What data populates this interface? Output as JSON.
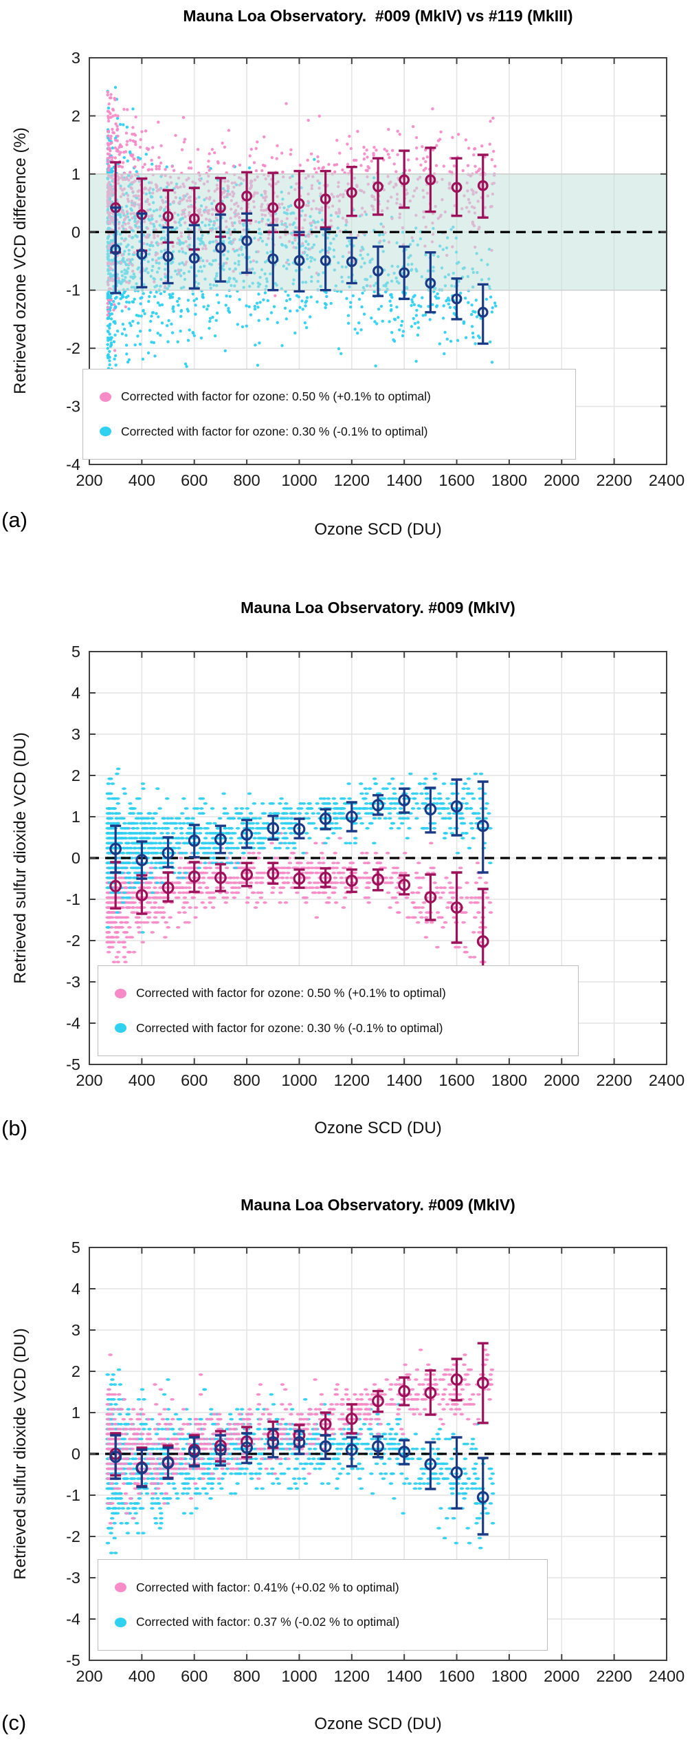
{
  "colors": {
    "pink_scatter": "#f78bc7",
    "cyan_scatter": "#2fd0f0",
    "dark_magenta_errorbar": "#9c1159",
    "dark_blue_errorbar": "#1a3a86",
    "band_fill": "#bfe1d9",
    "grid": "#e3e3e3",
    "axis": "#3f3f3f",
    "zero_line": "#000000",
    "tick_label": "#1a1a1a"
  },
  "chart_data": [
    {
      "type": "scatter",
      "panel_label": "(a)",
      "title": "Mauna Loa Observatory.  #009 (MkIV) vs #119 (MkIII)",
      "xlabel": "Ozone SCD (DU)",
      "ylabel": "Retrieved ozone VCD difference (%)",
      "xlim": [
        200,
        2400
      ],
      "ylim": [
        -4,
        3
      ],
      "xticks": [
        200,
        400,
        600,
        800,
        1000,
        1200,
        1400,
        1600,
        1800,
        2000,
        2200,
        2400
      ],
      "yticks": [
        3,
        2,
        1,
        0,
        -1,
        -2,
        -3,
        -4
      ],
      "grid": true,
      "zero_line_dashed": true,
      "shaded_band": {
        "from": -1,
        "to": 1,
        "color": "#bfe1d9",
        "opacity": 0.5
      },
      "legend_position": "lower-left-inside",
      "legend": [
        {
          "label": "Corrected with factor for ozone: 0.50 % (+0.1% to optimal)",
          "color": "#f78bc7"
        },
        {
          "label": "Corrected with factor for ozone: 0.30 % (-0.1% to optimal)",
          "color": "#2fd0f0"
        }
      ],
      "errorbar_series": [
        {
          "name": "binned-mean-plus-0.1",
          "color": "#9c1159",
          "x": [
            300,
            400,
            500,
            600,
            700,
            800,
            900,
            1000,
            1100,
            1200,
            1300,
            1400,
            1500,
            1600,
            1700
          ],
          "y": [
            0.42,
            0.3,
            0.27,
            0.23,
            0.42,
            0.62,
            0.42,
            0.49,
            0.57,
            0.68,
            0.78,
            0.9,
            0.9,
            0.77,
            0.8
          ],
          "hi": [
            1.2,
            0.92,
            0.72,
            0.76,
            0.93,
            1.03,
            1.02,
            1.05,
            1.05,
            1.12,
            1.27,
            1.4,
            1.45,
            1.27,
            1.33
          ],
          "lo": [
            -0.35,
            -0.32,
            -0.18,
            -0.3,
            -0.08,
            0.2,
            0.0,
            -0.05,
            0.08,
            0.28,
            0.3,
            0.42,
            0.35,
            0.28,
            0.25
          ]
        },
        {
          "name": "binned-mean-minus-0.1",
          "color": "#1a3a86",
          "x": [
            300,
            400,
            500,
            600,
            700,
            800,
            900,
            1000,
            1100,
            1200,
            1300,
            1400,
            1500,
            1600,
            1700
          ],
          "y": [
            -0.3,
            -0.38,
            -0.42,
            -0.45,
            -0.27,
            -0.15,
            -0.46,
            -0.49,
            -0.49,
            -0.51,
            -0.67,
            -0.7,
            -0.88,
            -1.15,
            -1.38
          ],
          "hi": [
            0.42,
            0.32,
            0.08,
            0.12,
            0.3,
            0.32,
            0.12,
            0.0,
            0.05,
            -0.1,
            -0.25,
            -0.25,
            -0.35,
            -0.8,
            -0.9
          ],
          "lo": [
            -1.05,
            -0.95,
            -0.88,
            -0.97,
            -0.85,
            -0.7,
            -1.0,
            -1.02,
            -1.0,
            -0.88,
            -1.1,
            -1.15,
            -1.38,
            -1.5,
            -1.92
          ]
        }
      ],
      "clouds": [
        {
          "name": "scatter-minus-0.1",
          "color": "#2fd0f0",
          "n": 1400,
          "seed": 11,
          "x_exponent": 2.2,
          "y_step": 0,
          "marker": {
            "rx": 2.2,
            "ry": 2.2
          },
          "keypoints": [
            [
              270,
              -0.4,
              1.15
            ],
            [
              400,
              -0.45,
              0.85
            ],
            [
              600,
              -0.5,
              0.75
            ],
            [
              800,
              -0.4,
              0.65
            ],
            [
              1000,
              -0.55,
              0.65
            ],
            [
              1200,
              -0.7,
              0.6
            ],
            [
              1400,
              -0.9,
              0.55
            ],
            [
              1750,
              -1.25,
              0.5
            ]
          ]
        },
        {
          "name": "scatter-plus-0.1",
          "color": "#f78bc7",
          "n": 1100,
          "seed": 22,
          "x_exponent": 1.9,
          "y_step": 0,
          "marker": {
            "rx": 2.2,
            "ry": 2.2
          },
          "keypoints": [
            [
              270,
              0.75,
              0.95
            ],
            [
              400,
              0.55,
              0.62
            ],
            [
              600,
              0.45,
              0.55
            ],
            [
              800,
              0.55,
              0.5
            ],
            [
              1000,
              0.5,
              0.48
            ],
            [
              1200,
              0.68,
              0.5
            ],
            [
              1400,
              0.85,
              0.5
            ],
            [
              1750,
              0.8,
              0.48
            ]
          ]
        }
      ]
    },
    {
      "type": "scatter",
      "panel_label": "(b)",
      "title": "Mauna Loa Observatory. #009 (MkIV)",
      "xlabel": "Ozone SCD (DU)",
      "ylabel": "Retrieved sulfur dioxide VCD (DU)",
      "xlim": [
        200,
        2400
      ],
      "ylim": [
        -5,
        5
      ],
      "xticks": [
        200,
        400,
        600,
        800,
        1000,
        1200,
        1400,
        1600,
        1800,
        2000,
        2200,
        2400
      ],
      "yticks": [
        5,
        4,
        3,
        2,
        1,
        0,
        -1,
        -2,
        -3,
        -4,
        -5
      ],
      "grid": true,
      "zero_line_dashed": true,
      "shaded_band": null,
      "legend_position": "lower-left-inside",
      "legend": [
        {
          "label": "Corrected with factor for ozone: 0.50 % (+0.1% to optimal)",
          "color": "#f78bc7"
        },
        {
          "label": "Corrected with factor for ozone: 0.30 % (-0.1% to optimal)",
          "color": "#2fd0f0"
        }
      ],
      "errorbar_series": [
        {
          "name": "binned-mean-plus-0.1",
          "color": "#9c1159",
          "x": [
            300,
            400,
            500,
            600,
            700,
            800,
            900,
            1000,
            1100,
            1200,
            1300,
            1400,
            1500,
            1600,
            1700
          ],
          "y": [
            -0.68,
            -0.9,
            -0.72,
            -0.45,
            -0.48,
            -0.4,
            -0.38,
            -0.5,
            -0.48,
            -0.55,
            -0.52,
            -0.65,
            -0.95,
            -1.2,
            -2.02
          ],
          "hi": [
            -0.1,
            -0.42,
            -0.35,
            -0.1,
            -0.15,
            -0.12,
            -0.12,
            -0.28,
            -0.25,
            -0.28,
            -0.28,
            -0.42,
            -0.4,
            -0.35,
            -0.75
          ],
          "lo": [
            -1.22,
            -1.35,
            -1.05,
            -0.82,
            -0.8,
            -0.68,
            -0.62,
            -0.72,
            -0.7,
            -0.82,
            -0.78,
            -0.88,
            -1.5,
            -2.05,
            -3.2
          ]
        },
        {
          "name": "binned-mean-minus-0.1",
          "color": "#1a3a86",
          "x": [
            300,
            400,
            500,
            600,
            700,
            800,
            900,
            1000,
            1100,
            1200,
            1300,
            1400,
            1500,
            1600,
            1700
          ],
          "y": [
            0.22,
            -0.05,
            0.12,
            0.42,
            0.45,
            0.57,
            0.72,
            0.7,
            0.95,
            1.0,
            1.28,
            1.4,
            1.18,
            1.25,
            0.78
          ],
          "hi": [
            0.78,
            0.4,
            0.5,
            0.8,
            0.78,
            0.92,
            1.02,
            0.95,
            1.18,
            1.35,
            1.52,
            1.68,
            1.7,
            1.9,
            1.85
          ],
          "lo": [
            -0.35,
            -0.5,
            -0.22,
            0.02,
            0.12,
            0.25,
            0.45,
            0.48,
            0.7,
            0.65,
            1.05,
            1.1,
            0.62,
            0.55,
            -0.35
          ]
        }
      ],
      "clouds": [
        {
          "name": "scatter-plus-0.1",
          "color": "#f78bc7",
          "n": 1150,
          "seed": 33,
          "x_exponent": 2.1,
          "y_step": 0.12,
          "marker": {
            "rx": 3.3,
            "ry": 1.9
          },
          "keypoints": [
            [
              270,
              -1.0,
              0.72
            ],
            [
              450,
              -0.8,
              0.5
            ],
            [
              700,
              -0.45,
              0.35
            ],
            [
              900,
              -0.4,
              0.32
            ],
            [
              1100,
              -0.5,
              0.32
            ],
            [
              1300,
              -0.5,
              0.32
            ],
            [
              1500,
              -0.95,
              0.5
            ],
            [
              1730,
              -1.5,
              0.7
            ]
          ]
        },
        {
          "name": "scatter-minus-0.1",
          "color": "#2fd0f0",
          "n": 1250,
          "seed": 44,
          "x_exponent": 2.0,
          "y_step": 0.12,
          "marker": {
            "rx": 3.3,
            "ry": 1.9
          },
          "keypoints": [
            [
              270,
              0.25,
              0.62
            ],
            [
              450,
              0.3,
              0.5
            ],
            [
              700,
              0.5,
              0.38
            ],
            [
              900,
              0.7,
              0.33
            ],
            [
              1100,
              0.95,
              0.3
            ],
            [
              1300,
              1.3,
              0.28
            ],
            [
              1500,
              1.25,
              0.42
            ],
            [
              1730,
              0.9,
              0.6
            ]
          ]
        }
      ]
    },
    {
      "type": "scatter",
      "panel_label": "(c)",
      "title": "Mauna Loa Observatory. #009 (MkIV)",
      "xlabel": "Ozone SCD (DU)",
      "ylabel": "Retrieved sulfur dioxide VCD (DU)",
      "xlim": [
        200,
        2400
      ],
      "ylim": [
        -5,
        5
      ],
      "xticks": [
        200,
        400,
        600,
        800,
        1000,
        1200,
        1400,
        1600,
        1800,
        2000,
        2200,
        2400
      ],
      "yticks": [
        5,
        4,
        3,
        2,
        1,
        0,
        -1,
        -2,
        -3,
        -4,
        -5
      ],
      "grid": true,
      "zero_line_dashed": true,
      "shaded_band": null,
      "legend_position": "lower-left-inside",
      "legend": [
        {
          "label": "Corrected with factor: 0.41% (+0.02 % to optimal)",
          "color": "#f78bc7"
        },
        {
          "label": "Corrected with factor: 0.37 % (-0.02 % to optimal)",
          "color": "#2fd0f0"
        }
      ],
      "errorbar_series": [
        {
          "name": "binned-mean-plus-0.02",
          "color": "#9c1159",
          "x": [
            300,
            400,
            500,
            600,
            700,
            800,
            900,
            1000,
            1100,
            1200,
            1300,
            1400,
            1500,
            1600,
            1700
          ],
          "y": [
            0.0,
            -0.33,
            -0.2,
            0.1,
            0.2,
            0.3,
            0.45,
            0.45,
            0.72,
            0.85,
            1.28,
            1.52,
            1.48,
            1.8,
            1.72
          ],
          "hi": [
            0.5,
            0.15,
            0.2,
            0.45,
            0.55,
            0.65,
            0.78,
            0.7,
            1.0,
            1.2,
            1.52,
            1.85,
            2.02,
            2.3,
            2.68
          ],
          "lo": [
            -0.52,
            -0.78,
            -0.58,
            -0.28,
            -0.18,
            -0.08,
            0.15,
            0.18,
            0.45,
            0.5,
            1.02,
            1.18,
            0.95,
            1.3,
            0.75
          ]
        },
        {
          "name": "binned-mean-minus-0.02",
          "color": "#1a3a86",
          "x": [
            300,
            400,
            500,
            600,
            700,
            800,
            900,
            1000,
            1100,
            1200,
            1300,
            1400,
            1500,
            1600,
            1700
          ],
          "y": [
            -0.07,
            -0.35,
            -0.22,
            0.05,
            0.1,
            0.15,
            0.28,
            0.28,
            0.18,
            0.1,
            0.18,
            0.05,
            -0.25,
            -0.45,
            -1.05
          ],
          "hi": [
            0.45,
            0.1,
            0.15,
            0.4,
            0.45,
            0.5,
            0.6,
            0.55,
            0.45,
            0.4,
            0.42,
            0.33,
            0.28,
            0.4,
            -0.1
          ],
          "lo": [
            -0.6,
            -0.8,
            -0.6,
            -0.3,
            -0.28,
            -0.22,
            -0.08,
            0.0,
            -0.12,
            -0.3,
            -0.08,
            -0.25,
            -0.85,
            -1.32,
            -1.95
          ]
        }
      ],
      "clouds": [
        {
          "name": "scatter-minus-0.02",
          "color": "#2fd0f0",
          "n": 1400,
          "seed": 55,
          "x_exponent": 1.9,
          "y_step": 0.12,
          "marker": {
            "rx": 3.3,
            "ry": 1.9
          },
          "keypoints": [
            [
              270,
              -0.15,
              0.85
            ],
            [
              450,
              -0.25,
              0.65
            ],
            [
              700,
              0.05,
              0.5
            ],
            [
              900,
              0.25,
              0.45
            ],
            [
              1100,
              0.2,
              0.4
            ],
            [
              1300,
              0.15,
              0.4
            ],
            [
              1500,
              -0.3,
              0.55
            ],
            [
              1740,
              -0.9,
              0.6
            ]
          ]
        },
        {
          "name": "scatter-plus-0.02",
          "color": "#f78bc7",
          "n": 800,
          "seed": 66,
          "x_exponent": 1.6,
          "y_step": 0.12,
          "marker": {
            "rx": 3.3,
            "ry": 1.9
          },
          "keypoints": [
            [
              270,
              0.3,
              0.65
            ],
            [
              450,
              0.0,
              0.5
            ],
            [
              700,
              0.3,
              0.45
            ],
            [
              900,
              0.5,
              0.4
            ],
            [
              1100,
              0.8,
              0.38
            ],
            [
              1300,
              1.3,
              0.35
            ],
            [
              1500,
              1.5,
              0.35
            ],
            [
              1740,
              1.8,
              0.45
            ]
          ]
        }
      ]
    }
  ]
}
